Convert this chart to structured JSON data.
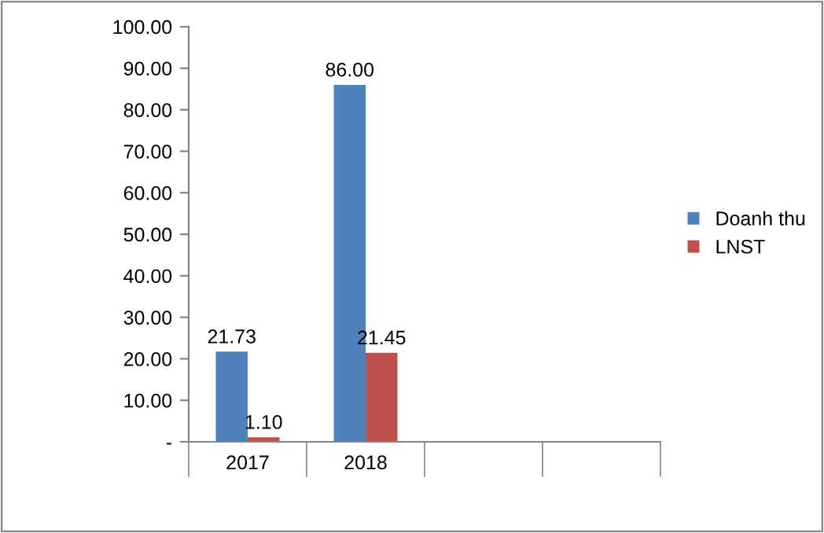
{
  "chart_data": {
    "type": "bar",
    "categories": [
      "2017",
      "2018",
      null,
      null
    ],
    "series": [
      {
        "name": "Doanh thu",
        "color": "#4f81bd",
        "values": [
          21.73,
          86.0,
          null,
          null
        ],
        "value_labels": [
          "21.73",
          "86.00",
          null,
          null
        ]
      },
      {
        "name": "LNST",
        "color": "#c0504d",
        "values": [
          1.1,
          21.45,
          null,
          null
        ],
        "value_labels": [
          "1.10",
          "21.45",
          null,
          null
        ]
      }
    ],
    "ylim": [
      0,
      100
    ],
    "yticks": [
      {
        "value": 0,
        "label": "-"
      },
      {
        "value": 10,
        "label": "10.00"
      },
      {
        "value": 20,
        "label": "20.00"
      },
      {
        "value": 30,
        "label": "30.00"
      },
      {
        "value": 40,
        "label": "40.00"
      },
      {
        "value": 50,
        "label": "50.00"
      },
      {
        "value": 60,
        "label": "60.00"
      },
      {
        "value": 70,
        "label": "70.00"
      },
      {
        "value": 80,
        "label": "80.00"
      },
      {
        "value": 90,
        "label": "90.00"
      },
      {
        "value": 100,
        "label": "100.00"
      }
    ],
    "grid": false,
    "legend": "right"
  }
}
